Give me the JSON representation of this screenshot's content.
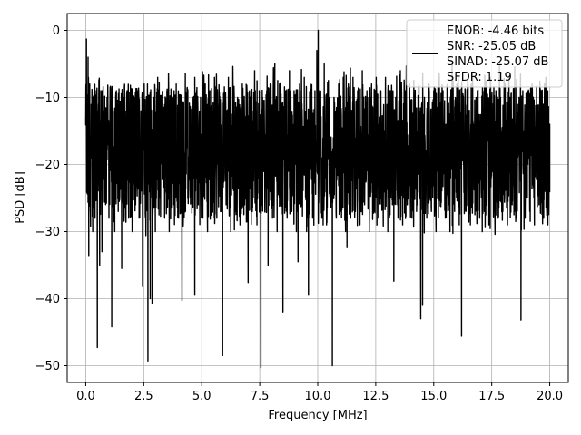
{
  "chart_data": {
    "type": "line",
    "xlabel": "Frequency [MHz]",
    "ylabel": "PSD [dB]",
    "xlim": [
      -0.8,
      20.8
    ],
    "ylim": [
      -52.5,
      2.5
    ],
    "x_ticks": [
      0.0,
      2.5,
      5.0,
      7.5,
      10.0,
      12.5,
      15.0,
      17.5,
      20.0
    ],
    "x_tick_labels": [
      "0.0",
      "2.5",
      "5.0",
      "7.5",
      "10.0",
      "12.5",
      "15.0",
      "17.5",
      "20.0"
    ],
    "y_ticks": [
      0,
      -10,
      -20,
      -30,
      -40,
      -50
    ],
    "y_tick_labels": [
      "0",
      "−10",
      "−20",
      "−30",
      "−40",
      "−50"
    ],
    "grid": true,
    "legend_position": "top-right",
    "series_color": "#000000",
    "series": [
      {
        "legend_lines": [
          "ENOB: -4.46 bits",
          "SNR: -25.05 dB",
          "SINAD: -25.07 dB",
          "SFDR: 1.19"
        ],
        "x_range": [
          0.0,
          20.0
        ],
        "typical_range": [
          -28,
          -8
        ],
        "points": [
          [
            0.0,
            -13
          ],
          [
            0.03,
            -1.3
          ],
          [
            0.06,
            -18
          ],
          [
            0.1,
            -4
          ],
          [
            0.13,
            -33.7
          ],
          [
            0.17,
            -8
          ],
          [
            0.2,
            -27
          ],
          [
            0.26,
            -12
          ],
          [
            0.3,
            -30
          ],
          [
            0.35,
            -10
          ],
          [
            0.4,
            -28
          ],
          [
            0.46,
            -9
          ],
          [
            0.5,
            -47.3
          ],
          [
            0.55,
            -11
          ],
          [
            0.6,
            -35
          ],
          [
            0.65,
            -9
          ],
          [
            0.7,
            -33
          ],
          [
            0.78,
            -12
          ],
          [
            0.85,
            -25
          ],
          [
            0.92,
            -10
          ],
          [
            1.0,
            -28
          ],
          [
            1.08,
            -11
          ],
          [
            1.12,
            -44.2
          ],
          [
            1.18,
            -12
          ],
          [
            1.25,
            -30
          ],
          [
            1.32,
            -9
          ],
          [
            1.4,
            -27
          ],
          [
            1.48,
            -11
          ],
          [
            1.55,
            -35.5
          ],
          [
            1.62,
            -10
          ],
          [
            1.7,
            -25
          ],
          [
            1.78,
            -9
          ],
          [
            1.85,
            -28
          ],
          [
            1.92,
            -12
          ],
          [
            2.0,
            -30
          ],
          [
            2.08,
            -10
          ],
          [
            2.15,
            -26
          ],
          [
            2.22,
            -9
          ],
          [
            2.3,
            -28
          ],
          [
            2.38,
            -12
          ],
          [
            2.45,
            -38.2
          ],
          [
            2.52,
            -8
          ],
          [
            2.6,
            -25
          ],
          [
            2.66,
            -8
          ],
          [
            2.68,
            -49.3
          ],
          [
            2.72,
            -10
          ],
          [
            2.78,
            -40
          ],
          [
            2.82,
            -12
          ],
          [
            2.86,
            -40.8
          ],
          [
            2.92,
            -10
          ],
          [
            3.0,
            -30
          ],
          [
            3.1,
            -7
          ],
          [
            3.2,
            -25
          ],
          [
            3.3,
            -10
          ],
          [
            3.4,
            -28
          ],
          [
            3.5,
            -9
          ],
          [
            3.6,
            -30
          ],
          [
            3.7,
            -11
          ],
          [
            3.8,
            -26
          ],
          [
            3.9,
            -8
          ],
          [
            4.0,
            -28
          ],
          [
            4.1,
            -10
          ],
          [
            4.15,
            -40.3
          ],
          [
            4.22,
            -11
          ],
          [
            4.3,
            -27
          ],
          [
            4.4,
            -9
          ],
          [
            4.5,
            -25
          ],
          [
            4.6,
            -10
          ],
          [
            4.7,
            -39.5
          ],
          [
            4.78,
            -9
          ],
          [
            4.85,
            -26
          ],
          [
            4.95,
            -10
          ],
          [
            5.05,
            -28
          ],
          [
            5.15,
            -8
          ],
          [
            5.25,
            -30
          ],
          [
            5.35,
            -9
          ],
          [
            5.45,
            -26
          ],
          [
            5.55,
            -7
          ],
          [
            5.65,
            -28
          ],
          [
            5.75,
            -10
          ],
          [
            5.85,
            -27
          ],
          [
            5.9,
            -48.5
          ],
          [
            5.96,
            -11
          ],
          [
            6.05,
            -26
          ],
          [
            6.15,
            -7
          ],
          [
            6.25,
            -30
          ],
          [
            6.35,
            -9
          ],
          [
            6.45,
            -27
          ],
          [
            6.55,
            -10
          ],
          [
            6.65,
            -29
          ],
          [
            6.75,
            -8
          ],
          [
            6.85,
            -26
          ],
          [
            6.95,
            -9
          ],
          [
            7.0,
            -37.6
          ],
          [
            7.08,
            -10
          ],
          [
            7.18,
            -27
          ],
          [
            7.28,
            -6
          ],
          [
            7.38,
            -29
          ],
          [
            7.48,
            -9
          ],
          [
            7.55,
            -50.3
          ],
          [
            7.62,
            -10
          ],
          [
            7.72,
            -27
          ],
          [
            7.8,
            -9
          ],
          [
            7.86,
            -35
          ],
          [
            7.95,
            -8
          ],
          [
            8.05,
            -28
          ],
          [
            8.15,
            -5
          ],
          [
            8.25,
            -30
          ],
          [
            8.35,
            -8
          ],
          [
            8.45,
            -26
          ],
          [
            8.5,
            -42
          ],
          [
            8.58,
            -9
          ],
          [
            8.68,
            -28
          ],
          [
            8.78,
            -6
          ],
          [
            8.88,
            -27
          ],
          [
            8.98,
            -9
          ],
          [
            9.08,
            -30
          ],
          [
            9.15,
            -34.5
          ],
          [
            9.22,
            -8
          ],
          [
            9.32,
            -26
          ],
          [
            9.42,
            -7
          ],
          [
            9.52,
            -30
          ],
          [
            9.6,
            -39.5
          ],
          [
            9.68,
            -8
          ],
          [
            9.78,
            -28
          ],
          [
            9.88,
            -9
          ],
          [
            9.96,
            -3
          ],
          [
            10.02,
            0.0
          ],
          [
            10.08,
            -9
          ],
          [
            10.18,
            -28
          ],
          [
            10.28,
            -5
          ],
          [
            10.38,
            -29
          ],
          [
            10.48,
            -10
          ],
          [
            10.56,
            -26
          ],
          [
            10.63,
            -50.0
          ],
          [
            10.7,
            -10
          ],
          [
            10.8,
            -28
          ],
          [
            10.9,
            -8
          ],
          [
            11.0,
            -27
          ],
          [
            11.1,
            -7
          ],
          [
            11.2,
            -30
          ],
          [
            11.26,
            -32.4
          ],
          [
            11.32,
            -8
          ],
          [
            11.42,
            -28
          ],
          [
            11.52,
            -7
          ],
          [
            11.62,
            -27
          ],
          [
            11.72,
            -9
          ],
          [
            11.82,
            -29
          ],
          [
            11.92,
            -6
          ],
          [
            12.02,
            -26
          ],
          [
            12.12,
            -9
          ],
          [
            12.22,
            -30
          ],
          [
            12.32,
            -8
          ],
          [
            12.42,
            -27
          ],
          [
            12.52,
            -7
          ],
          [
            12.62,
            -28
          ],
          [
            12.72,
            -9
          ],
          [
            12.82,
            -26
          ],
          [
            12.92,
            -7
          ],
          [
            13.02,
            -30
          ],
          [
            13.12,
            -9
          ],
          [
            13.22,
            -26
          ],
          [
            13.28,
            -37.4
          ],
          [
            13.36,
            -10
          ],
          [
            13.46,
            -28
          ],
          [
            13.56,
            -6
          ],
          [
            13.66,
            -29
          ],
          [
            13.76,
            -9
          ],
          [
            13.86,
            -26
          ],
          [
            13.96,
            -8
          ],
          [
            14.06,
            -28
          ],
          [
            14.16,
            -10
          ],
          [
            14.26,
            -27
          ],
          [
            14.36,
            -8
          ],
          [
            14.44,
            -43
          ],
          [
            14.48,
            -11
          ],
          [
            14.52,
            -41
          ],
          [
            14.6,
            -10
          ],
          [
            14.7,
            -28
          ],
          [
            14.8,
            -8
          ],
          [
            14.9,
            -27
          ],
          [
            15.0,
            -9
          ],
          [
            15.1,
            -30
          ],
          [
            15.2,
            -10
          ],
          [
            15.3,
            -26
          ],
          [
            15.4,
            -9
          ],
          [
            15.5,
            -28
          ],
          [
            15.6,
            -8
          ],
          [
            15.7,
            -30
          ],
          [
            15.8,
            -10
          ],
          [
            15.9,
            -27
          ],
          [
            16.0,
            -8
          ],
          [
            16.1,
            -29
          ],
          [
            16.2,
            -45.6
          ],
          [
            16.28,
            -10
          ],
          [
            16.38,
            -27
          ],
          [
            16.48,
            -8
          ],
          [
            16.58,
            -29
          ],
          [
            16.68,
            -10
          ],
          [
            16.78,
            -26
          ],
          [
            16.88,
            -9
          ],
          [
            16.98,
            -28
          ],
          [
            17.08,
            -11
          ],
          [
            17.18,
            -27
          ],
          [
            17.28,
            -8
          ],
          [
            17.38,
            -29
          ],
          [
            17.48,
            -10
          ],
          [
            17.58,
            -26
          ],
          [
            17.68,
            -9
          ],
          [
            17.78,
            -28
          ],
          [
            17.88,
            -10
          ],
          [
            17.98,
            -27
          ],
          [
            18.08,
            -8
          ],
          [
            18.18,
            -29
          ],
          [
            18.28,
            -10
          ],
          [
            18.38,
            -26
          ],
          [
            18.48,
            -9
          ],
          [
            18.58,
            -28
          ],
          [
            18.68,
            -10
          ],
          [
            18.76,
            -43.2
          ],
          [
            18.84,
            -9
          ],
          [
            18.94,
            -28
          ],
          [
            19.04,
            -10
          ],
          [
            19.14,
            -27
          ],
          [
            19.24,
            -8
          ],
          [
            19.34,
            -29
          ],
          [
            19.44,
            -10
          ],
          [
            19.54,
            -26
          ],
          [
            19.64,
            -9
          ],
          [
            19.74,
            -28
          ],
          [
            19.84,
            -10
          ],
          [
            19.92,
            -29
          ],
          [
            20.0,
            -14
          ]
        ]
      }
    ]
  }
}
